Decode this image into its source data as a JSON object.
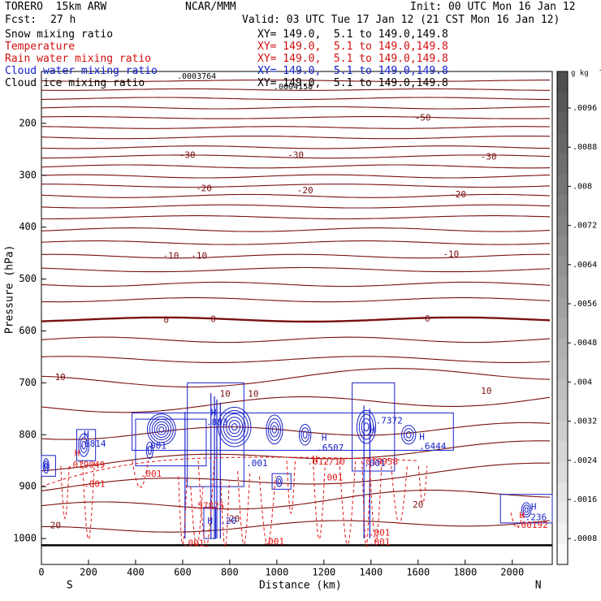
{
  "header": {
    "model": "TORERO  15km ARW",
    "org": "NCAR/MMM",
    "init": "Init: 00 UTC Mon 16 Jan 12",
    "fcst_label": "Fcst:",
    "fcst_value": "27 h",
    "valid": "Valid: 03 UTC Tue 17 Jan 12 (21 CST Mon 16 Jan 12)"
  },
  "legend": [
    {
      "name": "Snow mixing ratio",
      "xy": "XY= 149.0,  5.1 to 149.0,149.8",
      "color": "#000000"
    },
    {
      "name": "Temperature",
      "xy": "XY= 149.0,  5.1 to 149.0,149.8",
      "color": "#d01010"
    },
    {
      "name": "Rain water mixing ratio",
      "xy": "XY= 149.0,  5.1 to 149.0,149.8",
      "color": "#d01010"
    },
    {
      "name": "Cloud water mixing ratio",
      "xy": "XY= 149.0,  5.1 to 149.0,149.8",
      "color": "#1020c8"
    },
    {
      "name": "Cloud ice mixing ratio",
      "xy": "XY= 149.0,  5.1 to 149.0,149.8",
      "color": "#000000"
    }
  ],
  "overlay_labels": [
    ".0003764",
    ".0004158"
  ],
  "chart_data": {
    "type": "contour",
    "xlabel": "Distance (km)",
    "ylabel": "Pressure (hPa)",
    "xlim": [
      0,
      2170
    ],
    "ylim": [
      100,
      1050
    ],
    "x_ticks": [
      0,
      200,
      400,
      600,
      800,
      1000,
      1200,
      1400,
      1600,
      1800,
      2000
    ],
    "y_ticks": [
      200,
      300,
      400,
      500,
      600,
      700,
      800,
      900,
      1000
    ],
    "x_tick_labels": [
      "0",
      "200",
      "400",
      "600",
      "800",
      "1000",
      "1200",
      "1400",
      "1600",
      "1800",
      "2000"
    ],
    "y_tick_labels": [
      "200",
      "300",
      "400",
      "500",
      "600",
      "700",
      "800",
      "900",
      "1000"
    ],
    "direction_left": "S",
    "direction_right": "N",
    "colorbar": {
      "unit": "g kg",
      "unit_sup": "-1",
      "levels": [
        ".0096",
        ".0088",
        ".008",
        ".0072",
        ".0064",
        ".0056",
        ".0048",
        ".004",
        ".0032",
        ".0024",
        ".0016",
        ".0008"
      ]
    },
    "temperature_labels": [
      {
        "text": "-50",
        "x": 1620,
        "p": 190
      },
      {
        "text": "-30",
        "x": 620,
        "p": 262
      },
      {
        "text": "-30",
        "x": 1080,
        "p": 262
      },
      {
        "text": "-30",
        "x": 1900,
        "p": 265
      },
      {
        "text": "-20",
        "x": 690,
        "p": 326
      },
      {
        "text": "-20",
        "x": 1120,
        "p": 330
      },
      {
        "text": "-20",
        "x": 1770,
        "p": 338
      },
      {
        "text": "-10",
        "x": 550,
        "p": 456
      },
      {
        "text": "-10",
        "x": 670,
        "p": 456
      },
      {
        "text": "-10",
        "x": 1740,
        "p": 453
      },
      {
        "text": "0",
        "x": 530,
        "p": 580
      },
      {
        "text": "0",
        "x": 730,
        "p": 578
      },
      {
        "text": "0",
        "x": 1640,
        "p": 577
      },
      {
        "text": "10",
        "x": 80,
        "p": 690
      },
      {
        "text": "10",
        "x": 780,
        "p": 722
      },
      {
        "text": "10",
        "x": 900,
        "p": 722
      },
      {
        "text": "10",
        "x": 1890,
        "p": 717
      },
      {
        "text": "20",
        "x": 60,
        "p": 976
      },
      {
        "text": "20",
        "x": 820,
        "p": 963
      },
      {
        "text": "20",
        "x": 1600,
        "p": 936
      }
    ],
    "maxima_labels": [
      {
        "text": "H",
        "x": 180,
        "p": 800,
        "color": "blue"
      },
      {
        "text": ".6814",
        "x": 160,
        "p": 818,
        "color": "blue"
      },
      {
        "text": "H",
        "x": 140,
        "p": 836,
        "color": "red"
      },
      {
        "text": ".019049",
        "x": 110,
        "p": 859,
        "color": "red"
      },
      {
        "text": "H",
        "x": 720,
        "p": 758,
        "color": "blue"
      },
      {
        "text": ".883",
        "x": 700,
        "p": 777,
        "color": "blue"
      },
      {
        "text": "H",
        "x": 1190,
        "p": 807,
        "color": "blue"
      },
      {
        "text": ".6507",
        "x": 1170,
        "p": 826,
        "color": "blue"
      },
      {
        "text": "H",
        "x": 1150,
        "p": 848,
        "color": "red"
      },
      {
        "text": ".012/10",
        "x": 1130,
        "p": 853,
        "color": "red"
      },
      {
        "text": "H",
        "x": 1395,
        "p": 792,
        "color": "blue"
      },
      {
        "text": ".7372",
        "x": 1420,
        "p": 774,
        "color": "blue"
      },
      {
        "text": ".019958",
        "x": 1355,
        "p": 853,
        "color": "red"
      },
      {
        "text": "H",
        "x": 1605,
        "p": 805,
        "color": "blue"
      },
      {
        "text": ".6444",
        "x": 1605,
        "p": 823,
        "color": "blue"
      },
      {
        "text": "H",
        "x": 2080,
        "p": 940,
        "color": "blue"
      },
      {
        "text": "H",
        "x": 2030,
        "p": 956,
        "color": "red"
      },
      {
        "text": ".236",
        "x": 2055,
        "p": 960,
        "color": "blue"
      },
      {
        "text": ".00192",
        "x": 2015,
        "p": 975,
        "color": "red"
      },
      {
        "text": ".57825",
        "x": 640,
        "p": 938,
        "color": "red"
      },
      {
        "text": "H",
        "x": 705,
        "p": 967,
        "color": "blue"
      },
      {
        "text": ".20",
        "x": 760,
        "p": 967,
        "color": "blue"
      }
    ],
    "rain_labels": [
      {
        "text": ".001",
        "x": 180,
        "p": 896
      },
      {
        "text": ".001",
        "x": 420,
        "p": 876
      },
      {
        "text": ".001",
        "x": 1190,
        "p": 883
      },
      {
        "text": ".001",
        "x": 1390,
        "p": 990
      },
      {
        "text": ".001",
        "x": 600,
        "p": 1010
      },
      {
        "text": ".001",
        "x": 940,
        "p": 1007
      },
      {
        "text": ".001",
        "x": 1390,
        "p": 1008
      }
    ],
    "cloud_labels": [
      {
        "text": ".001",
        "x": 440,
        "p": 822
      },
      {
        "text": ".001",
        "x": 870,
        "p": 856
      },
      {
        "text": ".001",
        "x": 1370,
        "p": 856
      }
    ]
  }
}
